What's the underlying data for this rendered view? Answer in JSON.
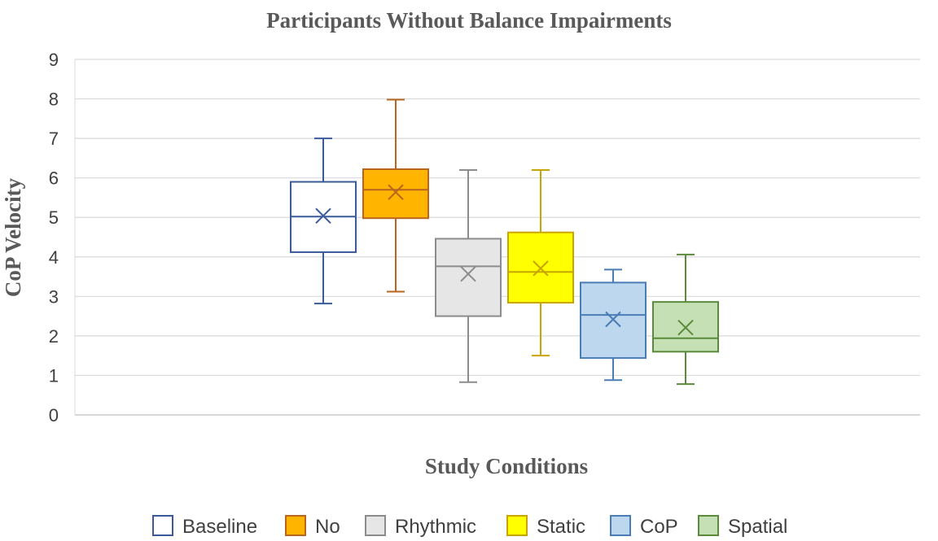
{
  "chart_data": {
    "type": "boxplot",
    "title": "Participants Without Balance Impairments",
    "xlabel": "Study Conditions",
    "ylabel": "CoP  Velocity",
    "ylim": [
      0,
      9
    ],
    "yticks": [
      "0",
      "1",
      "2",
      "3",
      "4",
      "5",
      "6",
      "7",
      "8",
      "9"
    ],
    "grid": true,
    "legend_position": "bottom",
    "series": [
      {
        "name": "Baseline",
        "min": 2.82,
        "q1": 4.12,
        "median": 5.02,
        "q3": 5.9,
        "max": 7.0,
        "mean": 5.04,
        "stroke": "#3A5A9A",
        "fill": "#FFFFFF"
      },
      {
        "name": "No",
        "min": 3.12,
        "q1": 4.98,
        "median": 5.7,
        "q3": 6.22,
        "max": 7.98,
        "mean": 5.64,
        "stroke": "#B8651F",
        "fill": "#FFB400"
      },
      {
        "name": "Rhythmic",
        "min": 0.83,
        "q1": 2.5,
        "median": 3.76,
        "q3": 4.46,
        "max": 6.2,
        "mean": 3.57,
        "stroke": "#8C8C8C",
        "fill": "#E7E6E6"
      },
      {
        "name": "Static",
        "min": 1.5,
        "q1": 2.84,
        "median": 3.62,
        "q3": 4.62,
        "max": 6.2,
        "mean": 3.71,
        "stroke": "#C7A500",
        "fill": "#FFFF00"
      },
      {
        "name": "CoP",
        "min": 0.88,
        "q1": 1.44,
        "median": 2.53,
        "q3": 3.35,
        "max": 3.68,
        "mean": 2.42,
        "stroke": "#4A7CB5",
        "fill": "#BDD7EE"
      },
      {
        "name": "Spatial",
        "min": 0.78,
        "q1": 1.6,
        "median": 1.94,
        "q3": 2.86,
        "max": 4.06,
        "mean": 2.21,
        "stroke": "#5A8A3A",
        "fill": "#C5E0B4"
      }
    ]
  }
}
